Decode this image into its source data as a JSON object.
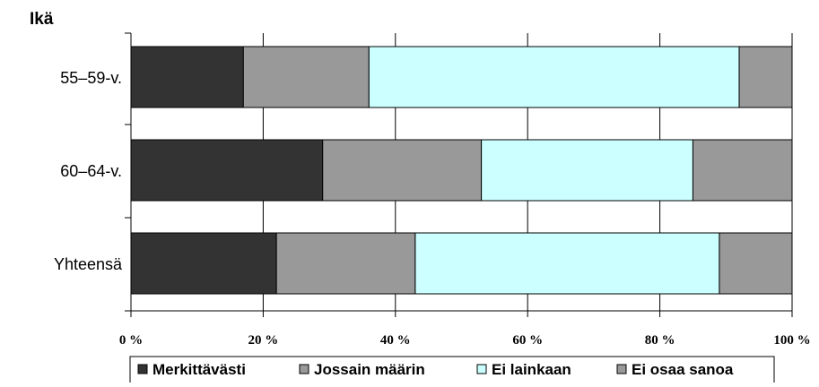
{
  "chart_data": {
    "type": "bar",
    "orientation": "horizontal",
    "stacked": true,
    "percent": true,
    "ylabel": "Ikä",
    "categories": [
      "55–59-v.",
      "60–64-v.",
      "Yhteensä"
    ],
    "series": [
      {
        "name": "Merkittävästi",
        "color": "#333333",
        "values": [
          17,
          29,
          22
        ]
      },
      {
        "name": "Jossain määrin",
        "color": "#999999",
        "values": [
          19,
          24,
          21
        ]
      },
      {
        "name": "Ei lainkaan",
        "color": "#ccffff",
        "values": [
          56,
          32,
          46
        ]
      },
      {
        "name": "Ei osaa sanoa",
        "color": "#999999",
        "values": [
          8,
          15,
          11
        ]
      }
    ],
    "xlim": [
      0,
      100
    ],
    "xticks": [
      0,
      20,
      40,
      60,
      80,
      100
    ],
    "xtick_labels": [
      "0 %",
      "20 %",
      "40 %",
      "60 %",
      "80 %",
      "100 %"
    ],
    "grid": true,
    "legend_position": "bottom"
  }
}
